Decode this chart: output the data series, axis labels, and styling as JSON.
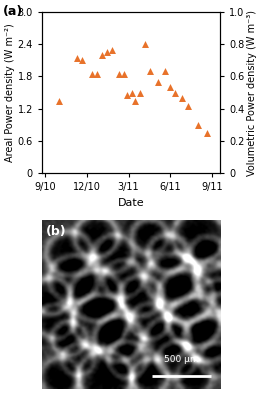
{
  "title_a": "(a)",
  "title_b": "(b)",
  "xlabel": "Date",
  "ylabel_left": "Areal Power density (W m⁻²)",
  "ylabel_right": "Volumetric Power density (W m⁻³)",
  "xtick_labels": [
    "9/10",
    "12/10",
    "3/11",
    "6/11",
    "9/11"
  ],
  "ylim_left": [
    0,
    3.0
  ],
  "ylim_right": [
    0,
    1.0
  ],
  "yticks_left": [
    0,
    0.6,
    1.2,
    1.8,
    2.4,
    3.0
  ],
  "yticks_right": [
    0,
    0.2,
    0.4,
    0.6,
    0.8,
    1.0
  ],
  "marker_color": "#E8722A",
  "marker": "^",
  "marker_size": 5,
  "data_x": [
    0.08,
    0.19,
    0.22,
    0.28,
    0.31,
    0.34,
    0.37,
    0.4,
    0.44,
    0.47,
    0.49,
    0.52,
    0.54,
    0.57,
    0.6,
    0.63,
    0.68,
    0.72,
    0.75,
    0.78,
    0.82,
    0.86,
    0.92,
    0.97
  ],
  "data_y": [
    1.35,
    2.15,
    2.1,
    1.85,
    1.85,
    2.2,
    2.25,
    2.3,
    1.85,
    1.85,
    1.45,
    1.5,
    1.35,
    1.5,
    2.4,
    1.9,
    1.7,
    1.9,
    1.6,
    1.5,
    1.4,
    1.25,
    0.9,
    0.75
  ],
  "background_color": "#ffffff",
  "panel_bg": "#ffffff",
  "scale_bar_text": "500 μm",
  "fig_width": 2.62,
  "fig_height": 3.97
}
